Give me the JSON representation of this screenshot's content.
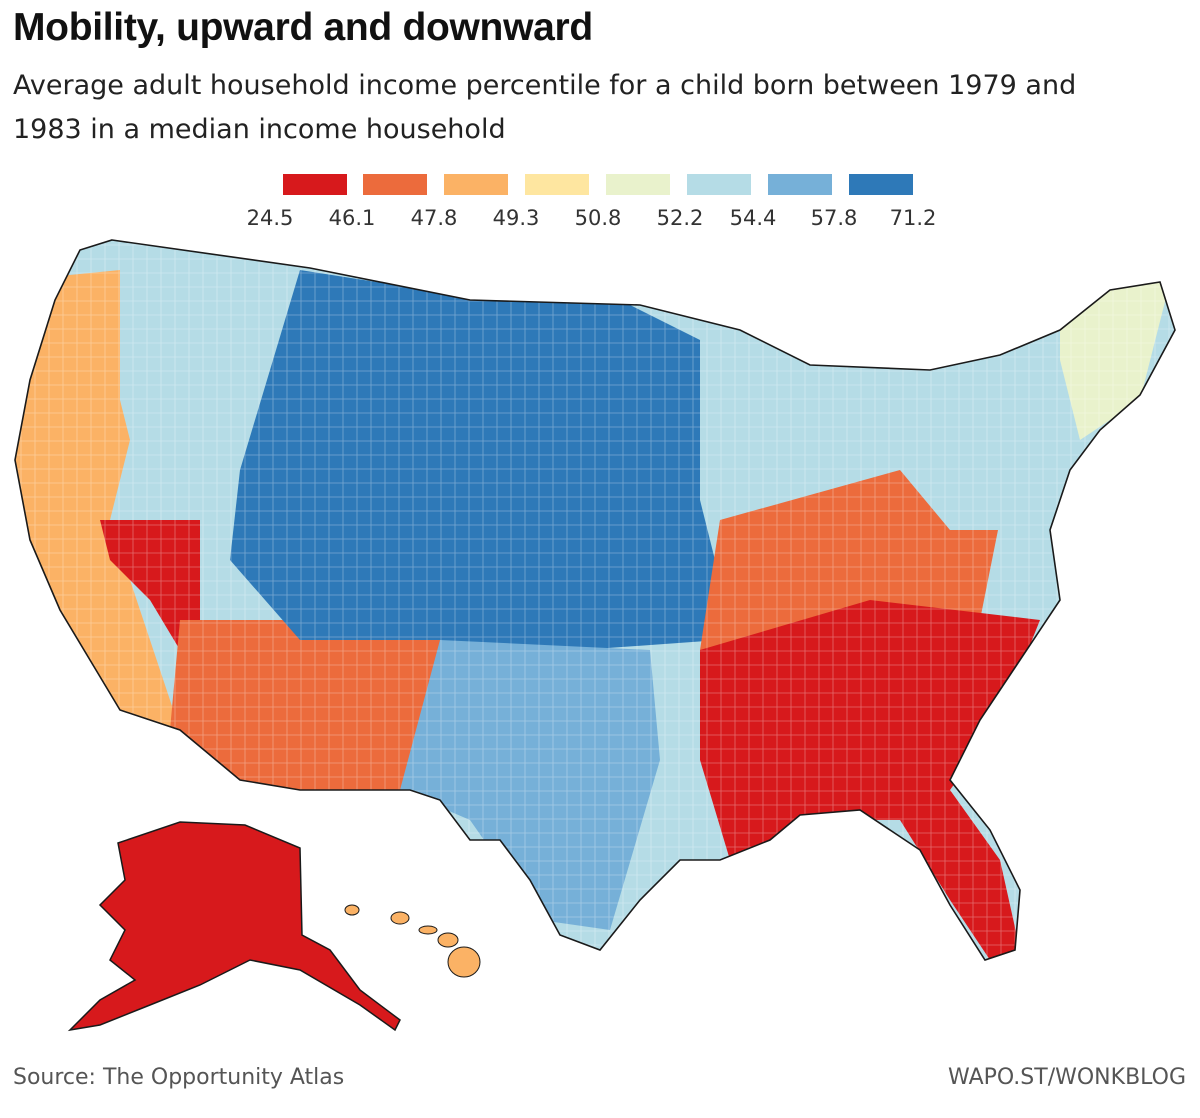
{
  "header": {
    "title": "Mobility, upward and downward",
    "subtitle": "Average adult household income percentile for a child born between 1979 and 1983 in a median income household"
  },
  "legend": {
    "colors": [
      "#d7191c",
      "#ec6b3c",
      "#fbb265",
      "#fee6a0",
      "#e9f2cc",
      "#b5dce6",
      "#76b0d8",
      "#2e79b8"
    ],
    "ticks": [
      "24.5",
      "46.1",
      "47.8",
      "49.3",
      "50.8",
      "52.2",
      "54.4",
      "57.8",
      "71.2"
    ]
  },
  "regions": {
    "alaska": "#d7191c",
    "hawaii": "#fbb265",
    "northwest": "#b5dce6",
    "west_coast": "#fbb265",
    "nevada": "#d7191c",
    "arizona": "#ec6b3c",
    "new_mexico": "#ec6b3c",
    "mountain": "#2e79b8",
    "plains": "#2e79b8",
    "texas": "#76b0d8",
    "midwest": "#b5dce6",
    "southeast": "#d7191c",
    "appalachia": "#ec6b3c",
    "northeast": "#b5dce6",
    "new_england": "#e9f2cc"
  },
  "footer": {
    "source": "Source: The Opportunity Atlas",
    "credit": "WAPO.ST/WONKBLOG"
  }
}
